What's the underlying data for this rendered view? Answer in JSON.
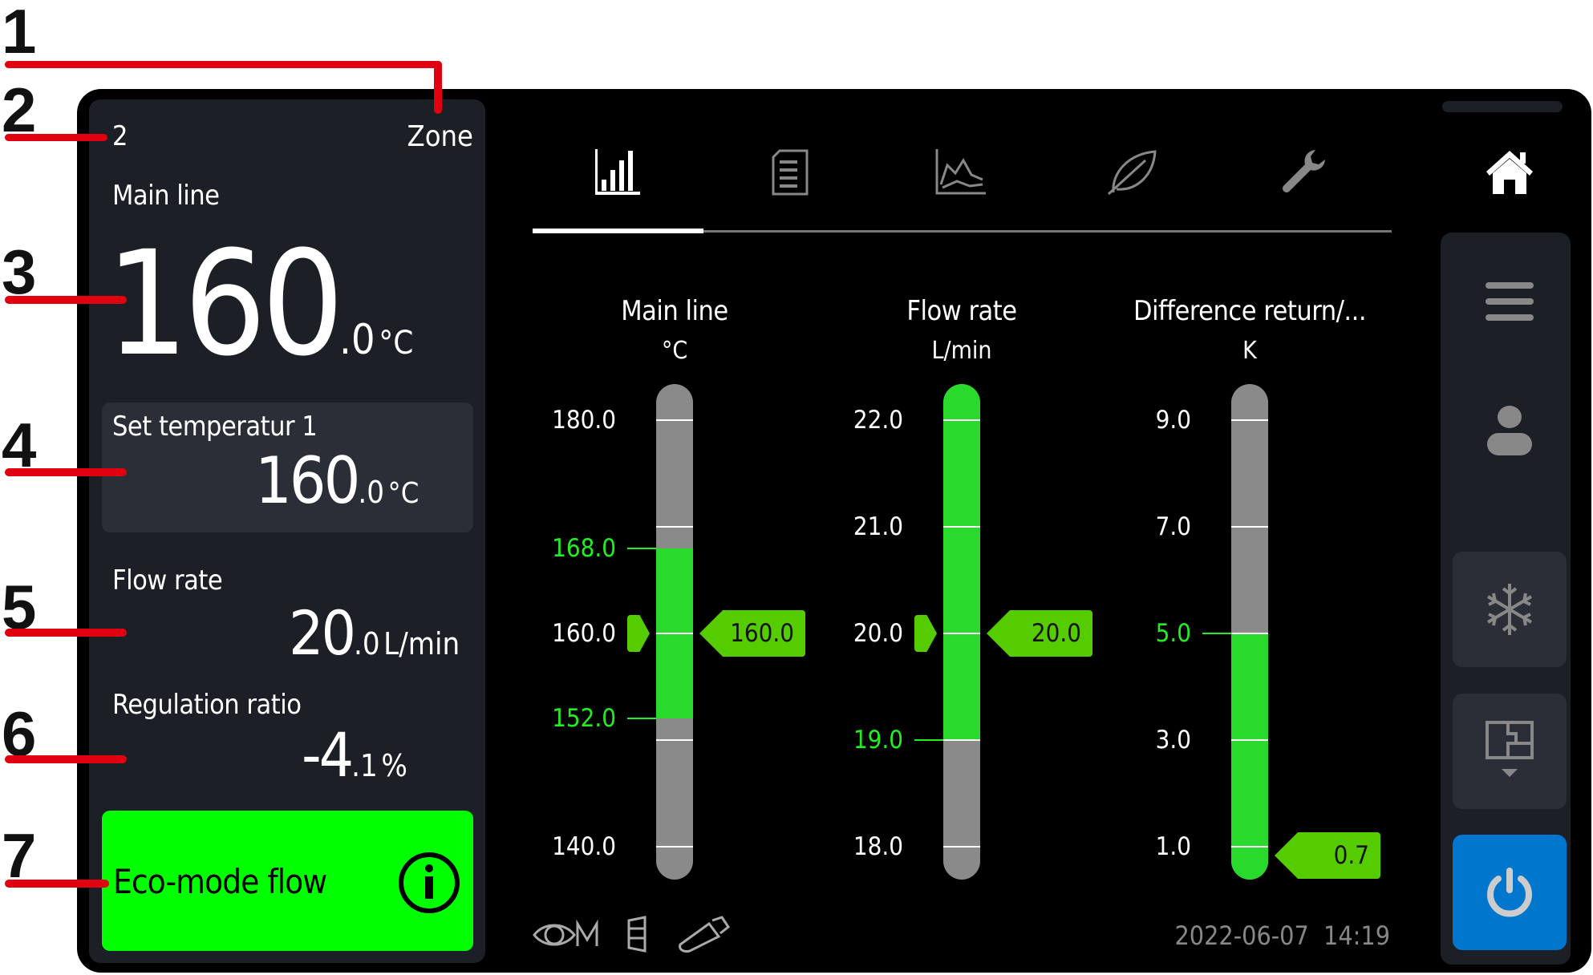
{
  "callouts": [
    "1",
    "2",
    "3",
    "4",
    "5",
    "6",
    "7"
  ],
  "zone_panel": {
    "zone_number": "2",
    "zone_label": "Zone",
    "main_line": {
      "label": "Main line",
      "int": "160",
      "dec": ".0",
      "unit": "°C"
    },
    "setpoint": {
      "label": "Set temperatur 1",
      "int": "160",
      "dec": ".0",
      "unit": "°C"
    },
    "flow_rate": {
      "label": "Flow rate",
      "int": "20",
      "dec": ".0",
      "unit": "L/min"
    },
    "regulation_ratio": {
      "label": "Regulation ratio",
      "int": "-4",
      "dec": ".1",
      "unit": "%"
    },
    "eco_button": {
      "label": "Eco-mode flow",
      "icon": "info-icon",
      "color": "#00ff00"
    }
  },
  "tabs": [
    {
      "icon": "bar-chart-icon",
      "active": true
    },
    {
      "icon": "document-list-icon",
      "active": false
    },
    {
      "icon": "line-chart-icon",
      "active": false
    },
    {
      "icon": "leaf-icon",
      "active": false
    },
    {
      "icon": "wrench-icon",
      "active": false
    }
  ],
  "gauges": [
    {
      "title": "Main line",
      "unit": "°C",
      "ticks": [
        "180.0",
        "168.0",
        "160.0",
        "152.0",
        "140.0"
      ],
      "scale_ticks": [
        180,
        170,
        160,
        150,
        140
      ],
      "tick_labels": [
        {
          "v": 180,
          "t": "180.0"
        },
        {
          "v": 168,
          "t": "168.0",
          "limit": true
        },
        {
          "v": 160,
          "t": "160.0"
        },
        {
          "v": 152,
          "t": "152.0",
          "limit": true
        },
        {
          "v": 140,
          "t": "140.0"
        }
      ],
      "green_range": [
        152,
        168
      ],
      "setpoint": 160,
      "value": 160,
      "value_label": "160.0"
    },
    {
      "title": "Flow rate",
      "unit": "L/min",
      "ticks": [
        "22.0",
        "21.0",
        "20.0",
        "19.0",
        "18.0"
      ],
      "scale_ticks": [
        22,
        21,
        20,
        19,
        18
      ],
      "tick_labels": [
        {
          "v": 22,
          "t": "22.0"
        },
        {
          "v": 21,
          "t": "21.0"
        },
        {
          "v": 20,
          "t": "20.0"
        },
        {
          "v": 19,
          "t": "19.0",
          "limit": true
        },
        {
          "v": 18,
          "t": "18.0"
        }
      ],
      "green_range": [
        19,
        null
      ],
      "setpoint": 20,
      "value": 20,
      "value_label": "20.0"
    },
    {
      "title": "Difference return/...",
      "unit": "K",
      "ticks": [
        "9.0",
        "7.0",
        "5.0",
        "3.0",
        "1.0"
      ],
      "scale_ticks": [
        9,
        7,
        5,
        3,
        1
      ],
      "tick_labels": [
        {
          "v": 9,
          "t": "9.0"
        },
        {
          "v": 7,
          "t": "7.0"
        },
        {
          "v": 5,
          "t": "5.0",
          "limit": true
        },
        {
          "v": 3,
          "t": "3.0"
        },
        {
          "v": 1,
          "t": "1.0"
        }
      ],
      "green_range": [
        null,
        5
      ],
      "setpoint": null,
      "value": 0.7,
      "value_label": "0.7"
    }
  ],
  "status_bar": {
    "icons": [
      "eye-m-icon",
      "battery-icon",
      "usb-stick-icon"
    ],
    "datetime": "2022-06-07  14:19"
  },
  "sidebar": {
    "items": [
      "home-icon",
      "menu-icon",
      "user-icon",
      "snowflake-icon",
      "floorplan-icon",
      "power-icon"
    ],
    "power_color": "#0077cc"
  },
  "colors": {
    "green_fill": "#29d92b",
    "gray_fill": "#8a8a8a",
    "flag": "#55cc00",
    "limit_text": "#22ee22"
  }
}
